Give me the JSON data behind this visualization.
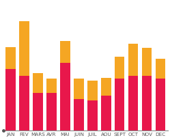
{
  "categories": [
    "JAN",
    "FEV",
    "MARS",
    "AVR",
    "MAI",
    "JUIN",
    "JUIL",
    "AOU",
    "SEPT",
    "OCT",
    "NOV",
    "DEC"
  ],
  "red_values": [
    62,
    55,
    38,
    38,
    68,
    32,
    30,
    35,
    52,
    55,
    55,
    52
  ],
  "orange_values": [
    22,
    55,
    20,
    14,
    22,
    20,
    20,
    18,
    22,
    32,
    28,
    20
  ],
  "red_color": "#E8174B",
  "orange_color": "#F5A623",
  "background_color": "#FFFFFF",
  "bar_width": 0.72,
  "ylim": [
    0,
    130
  ],
  "figsize": [
    2.49,
    2.03
  ],
  "dpi": 100
}
